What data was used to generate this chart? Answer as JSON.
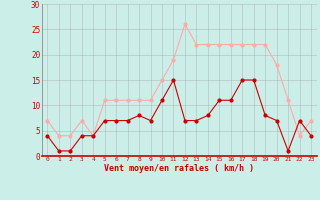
{
  "hours": [
    0,
    1,
    2,
    3,
    4,
    5,
    6,
    7,
    8,
    9,
    10,
    11,
    12,
    13,
    14,
    15,
    16,
    17,
    18,
    19,
    20,
    21,
    22,
    23
  ],
  "avg_wind": [
    4,
    1,
    1,
    4,
    4,
    7,
    7,
    7,
    8,
    7,
    11,
    15,
    7,
    7,
    8,
    11,
    11,
    15,
    15,
    8,
    7,
    1,
    7,
    4
  ],
  "gusts": [
    7,
    4,
    4,
    7,
    4,
    11,
    11,
    11,
    11,
    11,
    15,
    19,
    26,
    22,
    22,
    22,
    22,
    22,
    22,
    22,
    18,
    11,
    4,
    7
  ],
  "avg_color": "#cc0000",
  "gust_color": "#ffaaaa",
  "bg_color": "#cceee8",
  "grid_color": "#aaaaaa",
  "ylabel_values": [
    0,
    5,
    10,
    15,
    20,
    25,
    30
  ],
  "xlabel": "Vent moyen/en rafales ( km/h )",
  "ylim": [
    0,
    30
  ],
  "tick_color": "#cc0000",
  "xlabel_color": "#cc0000"
}
